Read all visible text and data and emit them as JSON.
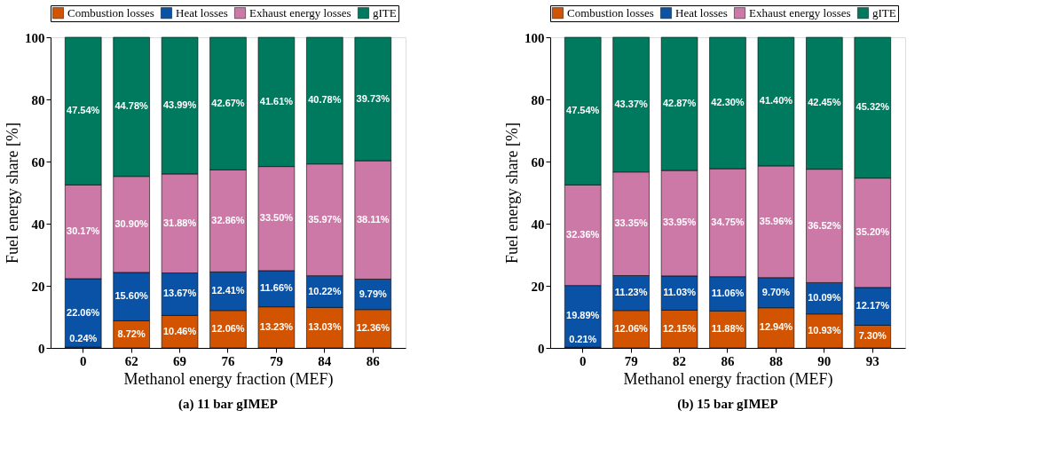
{
  "chart_data": [
    {
      "type": "bar",
      "stacked": true,
      "title": "(a) 11 bar gIMEP",
      "xlabel": "Methanol energy fraction (MEF)",
      "ylabel": "Fuel energy share [%]",
      "categories": [
        "0",
        "62",
        "69",
        "76",
        "79",
        "84",
        "86"
      ],
      "ylim": [
        0,
        100
      ],
      "yticks": [
        0,
        20,
        40,
        60,
        80,
        100
      ],
      "grid": false,
      "legend": "top",
      "series": [
        {
          "name": "Combustion losses",
          "color": "#d35400",
          "values": [
            0.24,
            8.72,
            10.46,
            12.06,
            13.23,
            13.03,
            12.36
          ],
          "value_labels": [
            "0.24%",
            "8.72%",
            "10.46%",
            "12.06%",
            "13.23%",
            "13.03%",
            "12.36%"
          ]
        },
        {
          "name": "Heat losses",
          "color": "#0a52a6",
          "values": [
            22.06,
            15.6,
            13.67,
            12.41,
            11.66,
            10.22,
            9.79
          ],
          "value_labels": [
            "22.06%",
            "15.60%",
            "13.67%",
            "12.41%",
            "11.66%",
            "10.22%",
            "9.79%"
          ]
        },
        {
          "name": "Exhaust energy losses",
          "color": "#cc79a7",
          "values": [
            30.17,
            30.9,
            31.88,
            32.86,
            33.5,
            35.97,
            38.11
          ],
          "value_labels": [
            "30.17%",
            "30.90%",
            "31.88%",
            "32.86%",
            "33.50%",
            "35.97%",
            "38.11%"
          ]
        },
        {
          "name": "gITE",
          "color": "#007a5e",
          "values": [
            47.54,
            44.78,
            43.99,
            42.67,
            41.61,
            40.78,
            39.73
          ],
          "value_labels": [
            "47.54%",
            "44.78%",
            "43.99%",
            "42.67%",
            "41.61%",
            "40.78%",
            "39.73%"
          ]
        }
      ]
    },
    {
      "type": "bar",
      "stacked": true,
      "title": "(b) 15 bar gIMEP",
      "xlabel": "Methanol energy fraction (MEF)",
      "ylabel": "Fuel energy share [%]",
      "categories": [
        "0",
        "79",
        "82",
        "86",
        "88",
        "90",
        "93"
      ],
      "ylim": [
        0,
        100
      ],
      "yticks": [
        0,
        20,
        40,
        60,
        80,
        100
      ],
      "grid": false,
      "legend": "top",
      "series": [
        {
          "name": "Combustion losses",
          "color": "#d35400",
          "values": [
            0.21,
            12.06,
            12.15,
            11.88,
            12.94,
            10.93,
            7.3
          ],
          "value_labels": [
            "0.21%",
            "12.06%",
            "12.15%",
            "11.88%",
            "12.94%",
            "10.93%",
            "7.30%"
          ]
        },
        {
          "name": "Heat losses",
          "color": "#0a52a6",
          "values": [
            19.89,
            11.23,
            11.03,
            11.06,
            9.7,
            10.09,
            12.17
          ],
          "value_labels": [
            "19.89%",
            "11.23%",
            "11.03%",
            "11.06%",
            "9.70%",
            "10.09%",
            "12.17%"
          ]
        },
        {
          "name": "Exhaust energy losses",
          "color": "#cc79a7",
          "values": [
            32.36,
            33.35,
            33.95,
            34.75,
            35.96,
            36.52,
            35.2
          ],
          "value_labels": [
            "32.36%",
            "33.35%",
            "33.95%",
            "34.75%",
            "35.96%",
            "36.52%",
            "35.20%"
          ]
        },
        {
          "name": "gITE",
          "color": "#007a5e",
          "values": [
            47.54,
            43.37,
            42.87,
            42.3,
            41.4,
            42.45,
            45.32
          ],
          "value_labels": [
            "47.54%",
            "43.37%",
            "42.87%",
            "42.30%",
            "41.40%",
            "42.45%",
            "45.32%"
          ]
        }
      ]
    }
  ]
}
